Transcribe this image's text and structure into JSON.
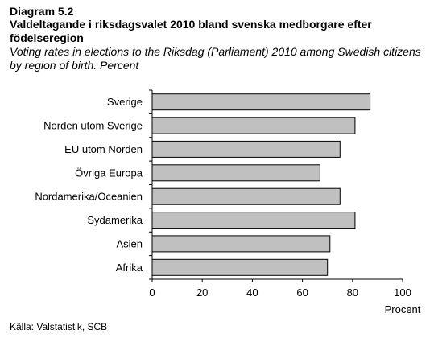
{
  "header": {
    "diagram_label": "Diagram 5.2",
    "title_sv": "Valdeltagande i riksdagsvalet 2010 bland svenska medborgare efter födelseregion",
    "title_en": "Voting rates in elections to the Riksdag (Parliament) 2010 among Swedish citizens by region of birth. Percent"
  },
  "source": "Källa: Valstatistik, SCB",
  "chart_data": {
    "type": "bar",
    "orientation": "horizontal",
    "categories": [
      "Sverige",
      "Norden utom Sverige",
      "EU utom Norden",
      "Övriga Europa",
      "Nordamerika/Oceanien",
      "Sydamerika",
      "Asien",
      "Afrika"
    ],
    "values": [
      87,
      81,
      75,
      67,
      75,
      81,
      71,
      70
    ],
    "xlabel": "Procent",
    "xlim": [
      0,
      100
    ],
    "xticks": [
      0,
      20,
      40,
      60,
      80,
      100
    ],
    "grid": false,
    "bar_color": "#c0c0c0",
    "bar_border_color": "#000000"
  }
}
